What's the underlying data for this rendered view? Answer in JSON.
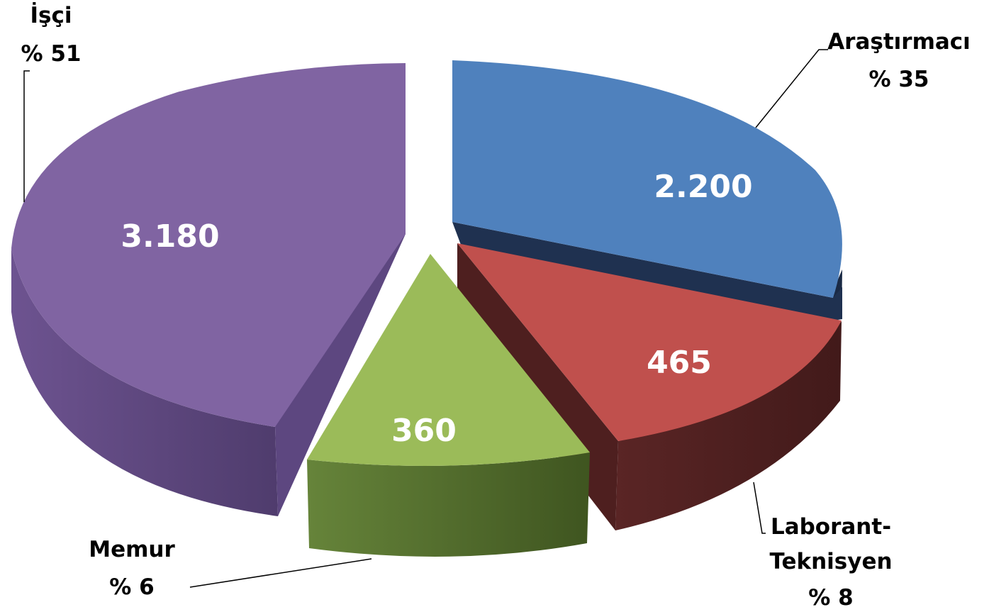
{
  "chart_data": {
    "type": "pie",
    "title": "",
    "categories": [
      "Araştırmacı",
      "Laborant-Teknisyen",
      "Memur",
      "İşçi"
    ],
    "values": [
      2200,
      465,
      360,
      3180
    ],
    "value_labels": [
      "2.200",
      "465",
      "360",
      "3.180"
    ],
    "percent_labels": [
      "% 35",
      "% 8",
      "% 6",
      "% 51"
    ],
    "category_label_lines": [
      [
        "Araştırmacı"
      ],
      [
        "Laborant-",
        "Teknisyen"
      ],
      [
        "Memur"
      ],
      [
        "İşçi"
      ]
    ],
    "colors": {
      "top": [
        "#4F81BD",
        "#C0504D",
        "#9BBB59",
        "#8064A2"
      ],
      "side": [
        "#1F3150",
        "#4E1F1F",
        "#4E6528",
        "#5D4780"
      ]
    },
    "style": "3d-exploded"
  }
}
